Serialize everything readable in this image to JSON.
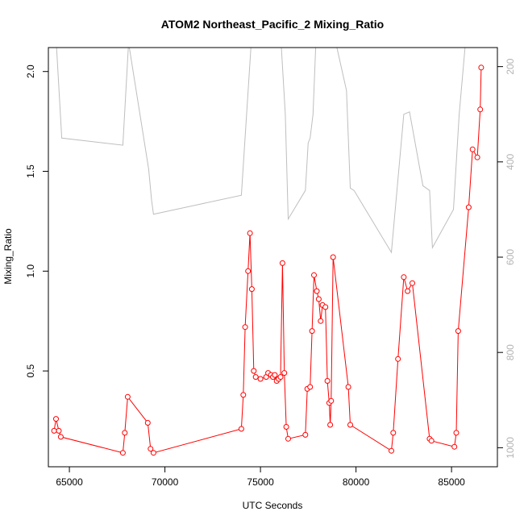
{
  "chart_data": {
    "type": "line",
    "title": "ATOM2 Northeast_Pacific_2 Mixing_Ratio",
    "xlabel": "UTC Seconds",
    "ylabel": "Mixing_Ratio",
    "xlim": [
      63900,
      87400
    ],
    "ylim": [
      0.02,
      2.12
    ],
    "y2lim": [
      1040,
      160
    ],
    "x_ticks": [
      65000,
      70000,
      75000,
      80000,
      85000
    ],
    "y_ticks": [
      0.5,
      1.0,
      1.5,
      2.0
    ],
    "y_tick_labels": [
      "0.5",
      "1.0",
      "1.5",
      "2.0"
    ],
    "y2_ticks": [
      200,
      400,
      600,
      800,
      1000
    ],
    "grid": false,
    "colors": {
      "mixing_ratio": "#ff0000",
      "pressure": "#bebebe",
      "frame": "#000000",
      "right_axis": "#b3b3b3"
    },
    "series": [
      {
        "axis": "left",
        "marker": "open-circle",
        "x": [
          64200,
          64300,
          64450,
          64550,
          67800,
          67900,
          68050,
          69100,
          69250,
          69400,
          74000,
          74100,
          74200,
          74350,
          74450,
          74550,
          74650,
          74750,
          75000,
          75300,
          75400,
          75550,
          75650,
          75750,
          75850,
          75950,
          76050,
          76150,
          76250,
          76350,
          76450,
          77350,
          77450,
          77600,
          77700,
          77800,
          77950,
          78050,
          78150,
          78250,
          78400,
          78500,
          78600,
          78650,
          78700,
          78800,
          79600,
          79700,
          81850,
          81950,
          82200,
          82500,
          82700,
          82950,
          83850,
          83950,
          85150,
          85250,
          85350,
          85900,
          86100,
          86350,
          86500,
          86550
        ],
        "y": [
          0.2,
          0.26,
          0.2,
          0.17,
          0.09,
          0.19,
          0.37,
          0.24,
          0.11,
          0.09,
          0.21,
          0.38,
          0.72,
          1.0,
          1.19,
          0.91,
          0.5,
          0.47,
          0.46,
          0.47,
          0.49,
          0.48,
          0.47,
          0.48,
          0.45,
          0.46,
          0.47,
          1.04,
          0.49,
          0.22,
          0.16,
          0.18,
          0.41,
          0.42,
          0.7,
          0.98,
          0.9,
          0.86,
          0.75,
          0.83,
          0.82,
          0.45,
          0.34,
          0.23,
          0.35,
          1.07,
          0.42,
          0.23,
          0.1,
          0.19,
          0.56,
          0.97,
          0.9,
          0.94,
          0.16,
          0.15,
          0.12,
          0.19,
          0.7,
          1.32,
          1.61,
          1.57,
          1.81,
          2.02
        ]
      },
      {
        "axis": "right",
        "x": [
          64300,
          64600,
          67800,
          68100,
          69150,
          69300,
          69400,
          74000,
          74550,
          74700,
          76050,
          76300,
          76450,
          77350,
          77500,
          77600,
          77750,
          77900,
          78050,
          78300,
          78500,
          78800,
          79000,
          79500,
          79700,
          79900,
          81850,
          82500,
          82800,
          83500,
          83850,
          84000,
          85100,
          85400,
          85750
        ],
        "y": [
          140,
          350,
          365,
          150,
          415,
          480,
          510,
          470,
          130,
          120,
          130,
          300,
          520,
          460,
          360,
          350,
          300,
          150,
          140,
          135,
          145,
          160,
          160,
          250,
          455,
          460,
          590,
          300,
          295,
          450,
          460,
          580,
          500,
          300,
          140
        ]
      }
    ]
  }
}
